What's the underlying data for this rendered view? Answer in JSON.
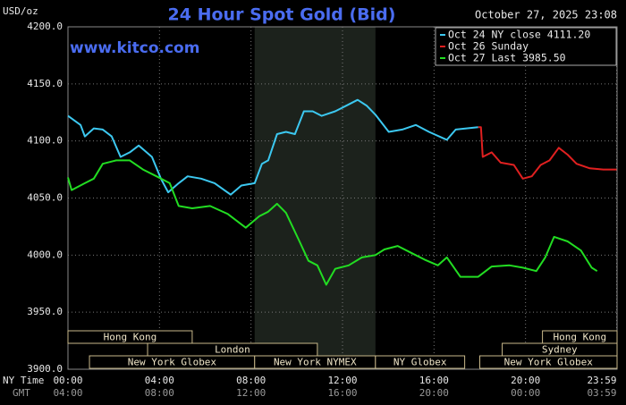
{
  "chart_data": {
    "type": "line",
    "title": "24 Hour Spot Gold (Bid)",
    "y_label": "USD/oz",
    "timestamp": "October 27, 2025 23:08",
    "watermark": "www.kitco.com",
    "x_row_label": "NY Time",
    "x2_row_label": "GMT",
    "xlim": [
      0,
      24
    ],
    "xticks": [
      {
        "value": 0,
        "label": "00:00"
      },
      {
        "value": 4,
        "label": "04:00"
      },
      {
        "value": 8,
        "label": "08:00"
      },
      {
        "value": 12,
        "label": "12:00"
      },
      {
        "value": 16,
        "label": "16:00"
      },
      {
        "value": 20,
        "label": "20:00"
      },
      {
        "value": 23.98,
        "label": "23:59"
      }
    ],
    "x2tick_labels": [
      "04:00",
      "08:00",
      "12:00",
      "16:00",
      "20:00",
      "00:00",
      "03:59"
    ],
    "ylim": [
      3900,
      4200
    ],
    "yticks": [
      {
        "value": 3900,
        "label": "3900.0"
      },
      {
        "value": 3950,
        "label": "3950.0"
      },
      {
        "value": 4000,
        "label": "4000.0"
      },
      {
        "value": 4050,
        "label": "4050.0"
      },
      {
        "value": 4100,
        "label": "4100.0"
      },
      {
        "value": 4150,
        "label": "4150.0"
      },
      {
        "value": 4200,
        "label": "4200.0"
      }
    ],
    "grid": true,
    "legend": "upper right",
    "series": [
      {
        "name": "Oct 24 NY close 4111.20",
        "color": "#3cc8f0",
        "x": [
          0,
          0.55,
          0.74,
          1.13,
          1.52,
          1.91,
          2.3,
          2.7,
          3.09,
          3.67,
          4.06,
          4.38,
          4.84,
          5.23,
          5.82,
          6.41,
          7.11,
          7.58,
          8.16,
          8.48,
          8.75,
          9.14,
          9.53,
          9.92,
          10.31,
          10.7,
          11.09,
          11.68,
          12.27,
          12.66,
          13.05,
          13.44,
          14.02,
          14.61,
          15.2,
          15.78,
          16.56,
          16.95,
          17.93
        ],
        "values": [
          4122,
          4114,
          4104,
          4111,
          4110,
          4104,
          4086,
          4090,
          4096,
          4086,
          4067,
          4055,
          4063,
          4069,
          4067,
          4063,
          4053,
          4061,
          4063,
          4080,
          4083,
          4106,
          4108,
          4106,
          4126,
          4126,
          4122,
          4126,
          4132,
          4136,
          4131,
          4123,
          4108,
          4110,
          4114,
          4108,
          4101,
          4110,
          4112
        ]
      },
      {
        "name": "Oct 26 Sunday",
        "color": "#e02020",
        "x": [
          17.93,
          18.05,
          18.13,
          18.52,
          18.91,
          19.49,
          19.88,
          20.27,
          20.66,
          21.05,
          21.45,
          21.84,
          22.23,
          22.81,
          23.4,
          23.98
        ],
        "values": [
          4112,
          4112,
          4086,
          4090,
          4081,
          4079,
          4067,
          4069,
          4079,
          4083,
          4094,
          4088,
          4080,
          4076,
          4075,
          4075
        ]
      },
      {
        "name": "Oct 27 Last 3985.50",
        "color": "#22dd22",
        "x": [
          0,
          0.16,
          0.74,
          1.13,
          1.52,
          2.11,
          2.7,
          3.28,
          3.87,
          4.45,
          4.84,
          5.43,
          6.21,
          6.99,
          7.77,
          8.36,
          8.75,
          9.14,
          9.53,
          10.12,
          10.51,
          10.9,
          11.29,
          11.68,
          12.27,
          12.85,
          13.44,
          13.83,
          14.41,
          15,
          15.59,
          16.17,
          16.56,
          17.15,
          17.93,
          18.52,
          19.3,
          19.88,
          20.47,
          20.86,
          21.25,
          21.84,
          22.42,
          22.89,
          23.13
        ],
        "values": [
          4068,
          4057,
          4063,
          4067,
          4080,
          4083,
          4083,
          4075,
          4069,
          4063,
          4043,
          4041,
          4043,
          4036,
          4024,
          4034,
          4038,
          4045,
          4037,
          4012,
          3995,
          3991,
          3974,
          3988,
          3991,
          3998,
          4000,
          4005,
          4008,
          4002,
          3996,
          3991,
          3998,
          3981,
          3981,
          3990,
          3991,
          3989,
          3986,
          3998,
          4016,
          4012,
          4004,
          3989,
          3986
        ]
      }
    ],
    "sessions": [
      {
        "label": "Hong Kong",
        "start": 0,
        "end": 5.43,
        "row": 0
      },
      {
        "label": "London",
        "start": 3.48,
        "end": 10.9,
        "row": 1
      },
      {
        "label": "New York Globex",
        "start": 0.94,
        "end": 8.16,
        "row": 2
      },
      {
        "label": "New York NYMEX",
        "start": 8.16,
        "end": 13.44,
        "row": 2,
        "highlight": true
      },
      {
        "label": "NY Globex",
        "start": 13.44,
        "end": 17.34,
        "row": 2
      },
      {
        "label": "Sydney",
        "start": 18.98,
        "end": 24,
        "row": 1
      },
      {
        "label": "Hong Kong",
        "start": 20.74,
        "end": 24,
        "row": 0
      },
      {
        "label": "New York Globex",
        "start": 18,
        "end": 24,
        "row": 2
      }
    ]
  }
}
